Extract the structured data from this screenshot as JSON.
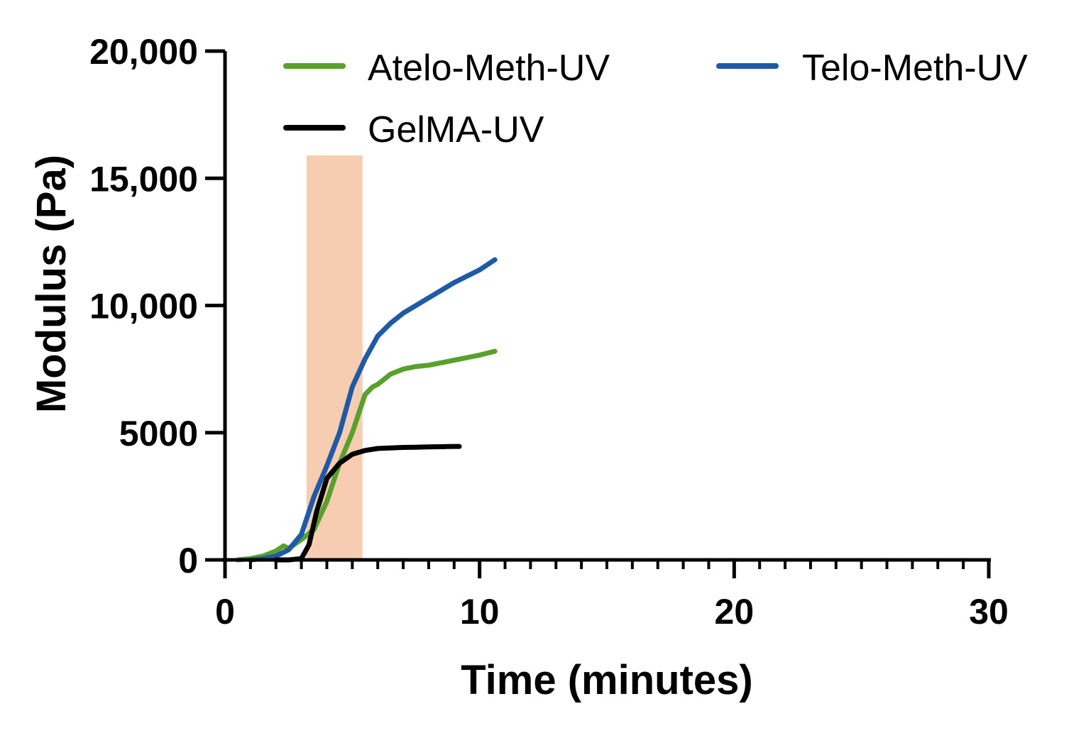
{
  "chart_data": {
    "type": "line",
    "xlabel": "Time (minutes)",
    "ylabel": "Modulus (Pa)",
    "xlim": [
      0,
      30
    ],
    "ylim": [
      0,
      20000
    ],
    "x_ticks": [
      0,
      10,
      20,
      30
    ],
    "x_tick_labels": [
      "0",
      "10",
      "20",
      "30"
    ],
    "x_minor_step": 1,
    "y_ticks": [
      0,
      5000,
      10000,
      15000,
      20000
    ],
    "y_tick_labels": [
      "0",
      "5000",
      "10,000",
      "15,000",
      "20,000"
    ],
    "grid": false,
    "legend_position": "top",
    "shaded_region": {
      "x_start": 3.2,
      "x_end": 5.4,
      "y_top": 15900,
      "color": "#f7cdb2"
    },
    "series": [
      {
        "name": "Atelo-Meth-UV",
        "color": "#5aa02c",
        "x": [
          0.5,
          1.0,
          1.5,
          2.0,
          2.3,
          2.5,
          3.0,
          3.5,
          4.0,
          4.5,
          5.0,
          5.5,
          5.8,
          6.0,
          6.5,
          7.0,
          7.5,
          8.0,
          8.5,
          9.0,
          9.5,
          10.0,
          10.6
        ],
        "values": [
          0,
          50,
          150,
          350,
          550,
          450,
          800,
          1200,
          2300,
          3800,
          5000,
          6500,
          6800,
          6900,
          7300,
          7500,
          7600,
          7650,
          7750,
          7850,
          7950,
          8050,
          8200
        ]
      },
      {
        "name": "Telo-Meth-UV",
        "color": "#1f5aa6",
        "x": [
          1.0,
          1.5,
          2.0,
          2.5,
          3.0,
          3.5,
          4.0,
          4.5,
          5.0,
          5.5,
          6.0,
          6.5,
          7.0,
          7.5,
          8.0,
          8.5,
          9.0,
          9.5,
          10.0,
          10.6
        ],
        "values": [
          0,
          50,
          150,
          400,
          1000,
          2500,
          3700,
          5000,
          6800,
          7900,
          8800,
          9300,
          9700,
          10000,
          10300,
          10600,
          10900,
          11150,
          11400,
          11800
        ]
      },
      {
        "name": "GelMA-UV",
        "color": "#000000",
        "x": [
          2.0,
          2.5,
          3.0,
          3.3,
          3.6,
          4.0,
          4.5,
          5.0,
          5.5,
          6.0,
          6.5,
          7.0,
          7.5,
          8.0,
          8.5,
          9.0,
          9.2
        ],
        "values": [
          0,
          0,
          50,
          600,
          1900,
          3200,
          3800,
          4150,
          4300,
          4380,
          4400,
          4420,
          4430,
          4440,
          4450,
          4460,
          4460
        ]
      }
    ]
  }
}
